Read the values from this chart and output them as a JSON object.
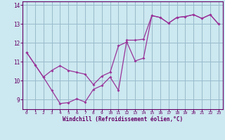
{
  "xlabel": "Windchill (Refroidissement éolien,°C)",
  "bg_color": "#cce8f0",
  "line_color": "#993399",
  "grid_color": "#99bbcc",
  "axis_color": "#660066",
  "text_color": "#660066",
  "xlim": [
    -0.5,
    23.5
  ],
  "ylim": [
    8.5,
    14.2
  ],
  "xticks": [
    0,
    1,
    2,
    3,
    4,
    5,
    6,
    7,
    8,
    9,
    10,
    11,
    12,
    13,
    14,
    15,
    16,
    17,
    18,
    19,
    20,
    21,
    22,
    23
  ],
  "yticks": [
    9,
    10,
    11,
    12,
    13,
    14
  ],
  "line1_x": [
    0,
    1,
    2,
    3,
    4,
    5,
    6,
    7,
    8,
    9,
    10,
    11,
    12,
    13,
    14,
    15,
    16,
    17,
    18,
    19,
    20,
    21,
    22,
    23
  ],
  "line1_y": [
    11.5,
    10.85,
    10.2,
    9.5,
    8.8,
    8.85,
    9.05,
    8.88,
    9.55,
    9.75,
    10.2,
    9.5,
    12.15,
    12.15,
    12.2,
    13.45,
    13.35,
    13.05,
    13.35,
    13.4,
    13.5,
    13.3,
    13.5,
    13.0
  ],
  "line2_x": [
    0,
    1,
    2,
    3,
    4,
    5,
    6,
    7,
    8,
    9,
    10,
    11,
    12,
    13,
    14,
    15,
    16,
    17,
    18,
    19,
    20,
    21,
    22,
    23
  ],
  "line2_y": [
    11.5,
    10.85,
    10.2,
    10.55,
    10.8,
    10.55,
    10.45,
    10.35,
    9.8,
    10.25,
    10.45,
    11.85,
    12.05,
    11.05,
    11.2,
    13.45,
    13.35,
    13.05,
    13.35,
    13.4,
    13.5,
    13.3,
    13.5,
    13.0
  ]
}
